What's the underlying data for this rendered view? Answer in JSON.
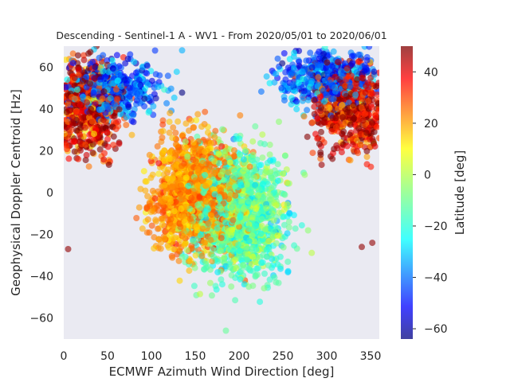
{
  "chart_data": {
    "type": "scatter",
    "title": "Descending - Sentinel-1 A - WV1 - From 2020/05/01 to 2020/06/01",
    "xlabel": "ECMWF Azimuth Wind Direction [deg]",
    "ylabel": "Geophysical Doppler Centroid [Hz]",
    "xlim": [
      0,
      360
    ],
    "ylim": [
      -70,
      70
    ],
    "x_ticks": [
      "0",
      "50",
      "100",
      "150",
      "200",
      "250",
      "300",
      "350"
    ],
    "y_ticks": [
      "60",
      "40",
      "20",
      "0",
      "−20",
      "−40",
      "−60"
    ],
    "grid": false,
    "background": "#eaeaf2",
    "colorbar": {
      "label": "Latitude [deg]",
      "range": [
        -64,
        50
      ],
      "ticks": [
        "40",
        "20",
        "0",
        "−20",
        "−40",
        "−60"
      ],
      "colormap": "jet",
      "alpha": 0.6
    },
    "point_alpha": 0.6,
    "distribution": {
      "description": "dense cloud of several thousand points; doppler varies with wind direction",
      "cluster_centers": [
        {
          "x": 150,
          "y": 0,
          "latitude": 20
        },
        {
          "x": 200,
          "y": -10,
          "latitude": -10
        },
        {
          "x": 25,
          "y": 40,
          "latitude": 40
        },
        {
          "x": 330,
          "y": 40,
          "latitude": 40
        },
        {
          "x": 60,
          "y": 50,
          "latitude": -40
        },
        {
          "x": 300,
          "y": 55,
          "latitude": -40
        }
      ],
      "outliers": [
        {
          "x": 185,
          "y": -66,
          "latitude": -10
        },
        {
          "x": 5,
          "y": -27,
          "latitude": 48
        },
        {
          "x": 340,
          "y": -26,
          "latitude": 48
        },
        {
          "x": 352,
          "y": -24,
          "latitude": 48
        },
        {
          "x": 135,
          "y": 68,
          "latitude": -30
        }
      ]
    }
  }
}
